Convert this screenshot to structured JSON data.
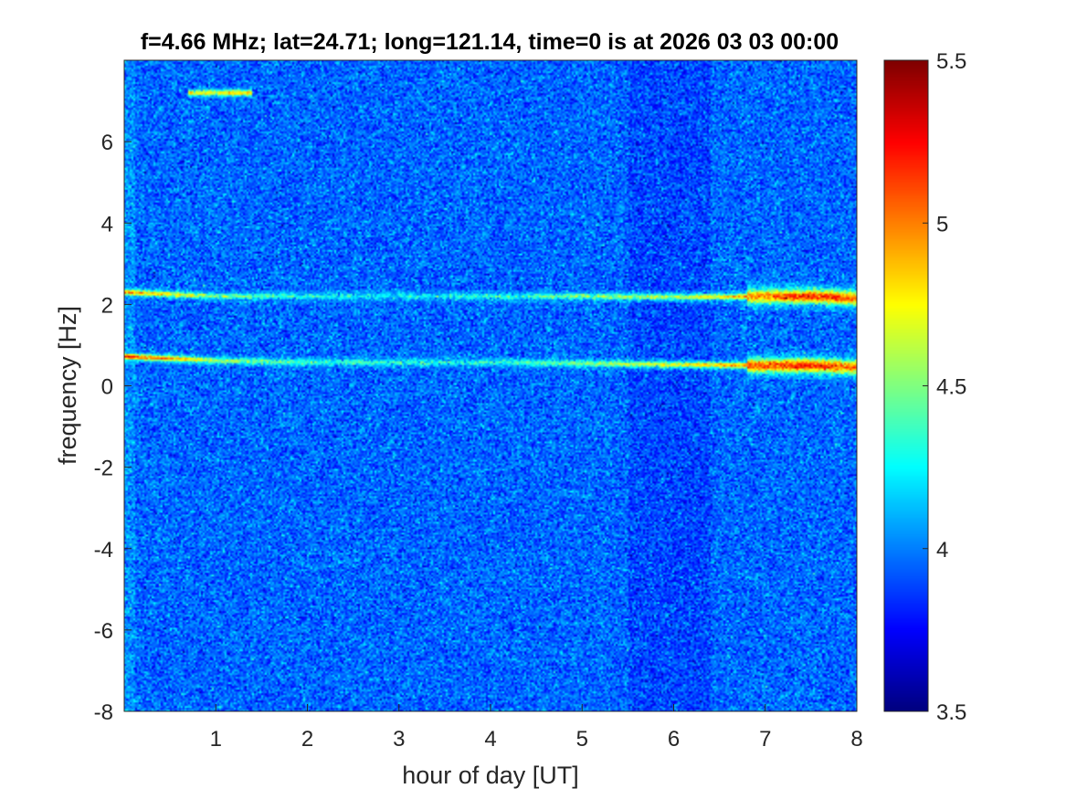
{
  "chart_data": {
    "type": "heatmap",
    "title": "f=4.66 MHz;  lat=24.71; long=121.14, time=0 is at 2026 03 03 00:00",
    "xlabel": "hour of day [UT]",
    "ylabel": "frequency [Hz]",
    "xlim": [
      0,
      8
    ],
    "ylim": [
      -8,
      8
    ],
    "xticks": [
      "1",
      "2",
      "3",
      "4",
      "5",
      "6",
      "7",
      "8"
    ],
    "yticks": [
      "-8",
      "-6",
      "-4",
      "-2",
      "0",
      "2",
      "4",
      "6"
    ],
    "colorbar": {
      "clim": [
        3.5,
        5.5
      ],
      "ticks": [
        "3.5",
        "4",
        "4.5",
        "5",
        "5.5"
      ],
      "colormap": "jet"
    },
    "background_level": 3.95,
    "spectral_lines": [
      {
        "x": [
          0,
          1,
          2,
          3,
          4,
          5,
          6,
          7,
          7.5,
          8
        ],
        "y": [
          0.72,
          0.62,
          0.58,
          0.57,
          0.57,
          0.55,
          0.52,
          0.5,
          0.5,
          0.45
        ],
        "level": [
          5.2,
          4.6,
          4.4,
          4.3,
          4.3,
          4.5,
          4.7,
          5.1,
          5.2,
          5.0
        ]
      },
      {
        "x": [
          0,
          1,
          2,
          3,
          4.6,
          5,
          6,
          7,
          7.5,
          8
        ],
        "y": [
          2.3,
          2.2,
          2.2,
          2.2,
          2.2,
          2.2,
          2.18,
          2.2,
          2.2,
          2.15
        ],
        "level": [
          5.0,
          4.5,
          4.3,
          4.2,
          4.4,
          4.5,
          4.6,
          5.0,
          5.2,
          5.1
        ]
      },
      {
        "x": [
          0.7,
          1.4
        ],
        "y": [
          7.2,
          7.2
        ],
        "level": [
          4.8,
          4.8
        ]
      }
    ]
  }
}
